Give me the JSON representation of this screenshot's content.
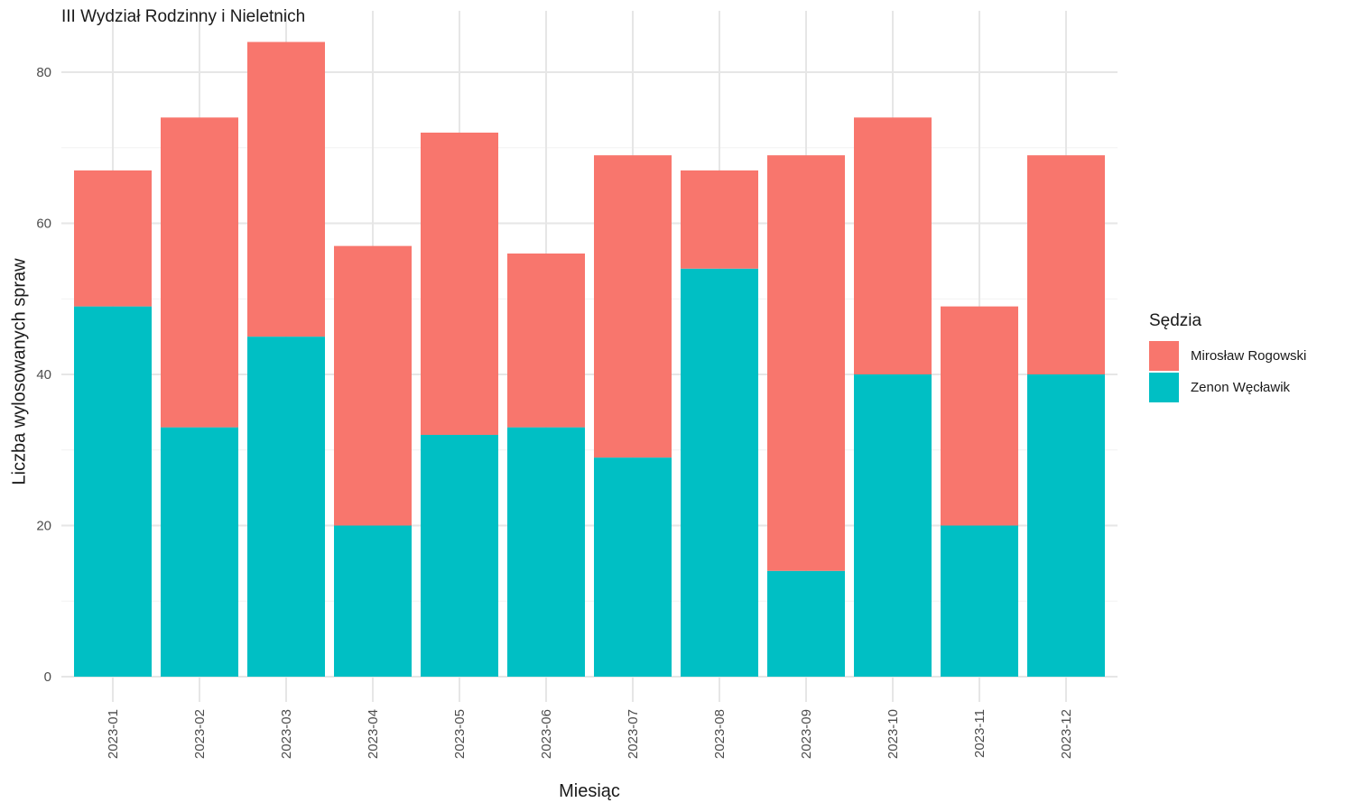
{
  "chart_data": {
    "type": "bar",
    "stacked": true,
    "title": "III Wydział Rodzinny i Nieletnich",
    "xlabel": "Miesiąc",
    "ylabel": "Liczba wylosowanych spraw",
    "categories": [
      "2023-01",
      "2023-02",
      "2023-03",
      "2023-04",
      "2023-05",
      "2023-06",
      "2023-07",
      "2023-08",
      "2023-09",
      "2023-10",
      "2023-11",
      "2023-12"
    ],
    "series": [
      {
        "name": "Zenon Węcławik",
        "color": "#00BFC4",
        "values": [
          49,
          33,
          45,
          20,
          32,
          33,
          29,
          54,
          14,
          40,
          20,
          40
        ]
      },
      {
        "name": "Mirosław Rogowski",
        "color": "#F8766D",
        "values": [
          18,
          41,
          39,
          37,
          40,
          23,
          40,
          13,
          55,
          34,
          29,
          29
        ]
      }
    ],
    "ylim": [
      0,
      88
    ],
    "yticks": [
      0,
      20,
      40,
      60,
      80
    ],
    "grid": true,
    "legend": {
      "title": "Sędzia",
      "position": "right",
      "entries": [
        {
          "label": "Mirosław Rogowski",
          "color": "#F8766D"
        },
        {
          "label": "Zenon Węcławik",
          "color": "#00BFC4"
        }
      ]
    }
  }
}
